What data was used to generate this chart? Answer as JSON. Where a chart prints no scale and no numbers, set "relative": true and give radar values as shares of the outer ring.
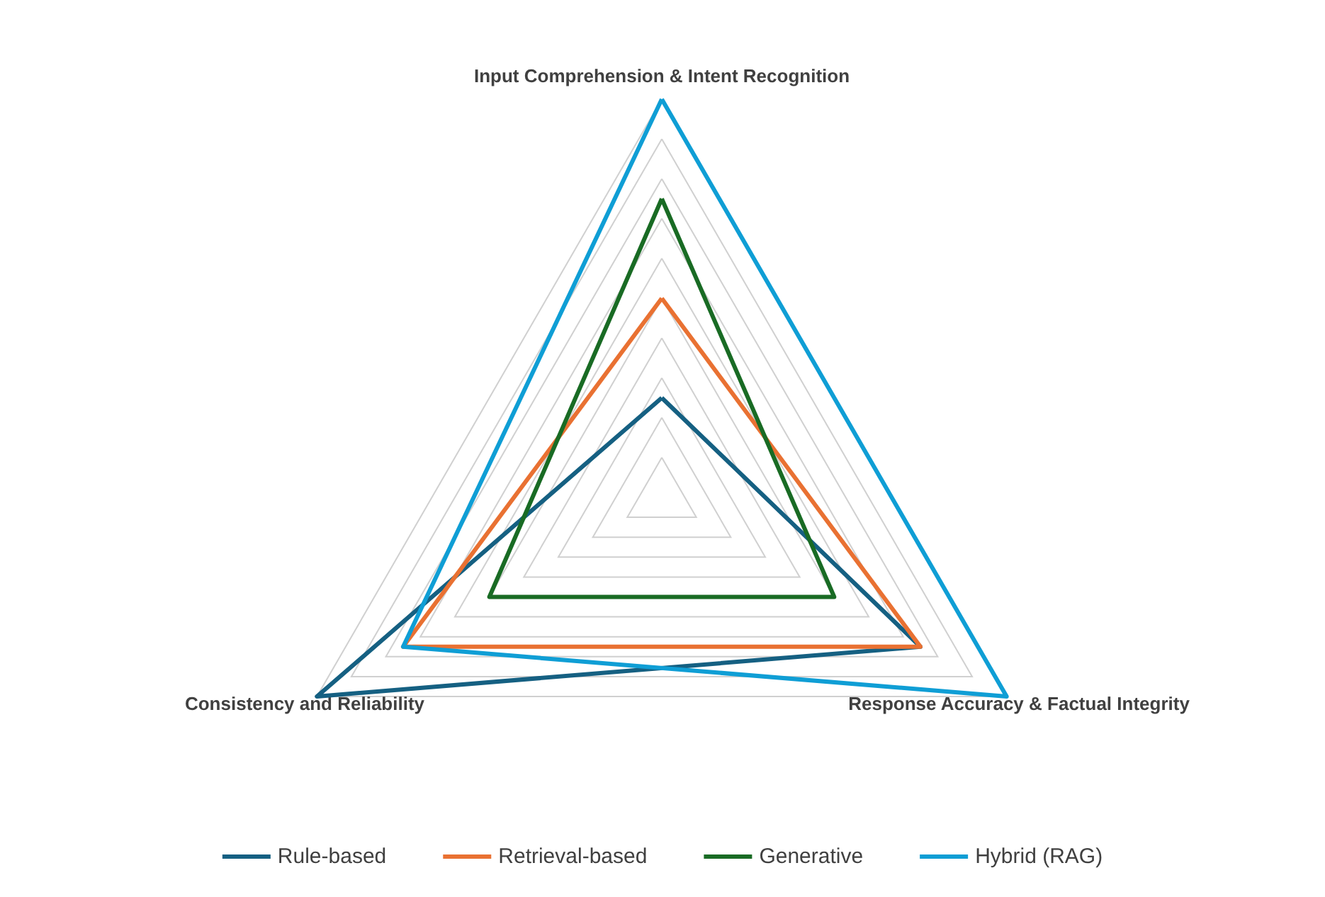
{
  "chart_data": {
    "type": "radar",
    "relative": true,
    "grid": true,
    "legend": "bottom",
    "marker": "none",
    "line_style": "solid",
    "categories": [
      "Input Comprehension & Intent Recognition",
      "Response Accuracy & Factual Integrity",
      "Consistency and Reliability"
    ],
    "series": [
      {
        "name": "Rule-based",
        "color": "#156082",
        "values": [
          0.25,
          0.75,
          1
        ]
      },
      {
        "name": "Retrieval-based",
        "color": "#e97132",
        "values": [
          0.5,
          0.75,
          0.75
        ]
      },
      {
        "name": "Generative",
        "color": "#196b24",
        "values": [
          0.75,
          0.5,
          0.5
        ]
      },
      {
        "name": "Hybrid (RAG)",
        "color": "#0f9ed5",
        "values": [
          1,
          1,
          0.75
        ]
      }
    ]
  }
}
